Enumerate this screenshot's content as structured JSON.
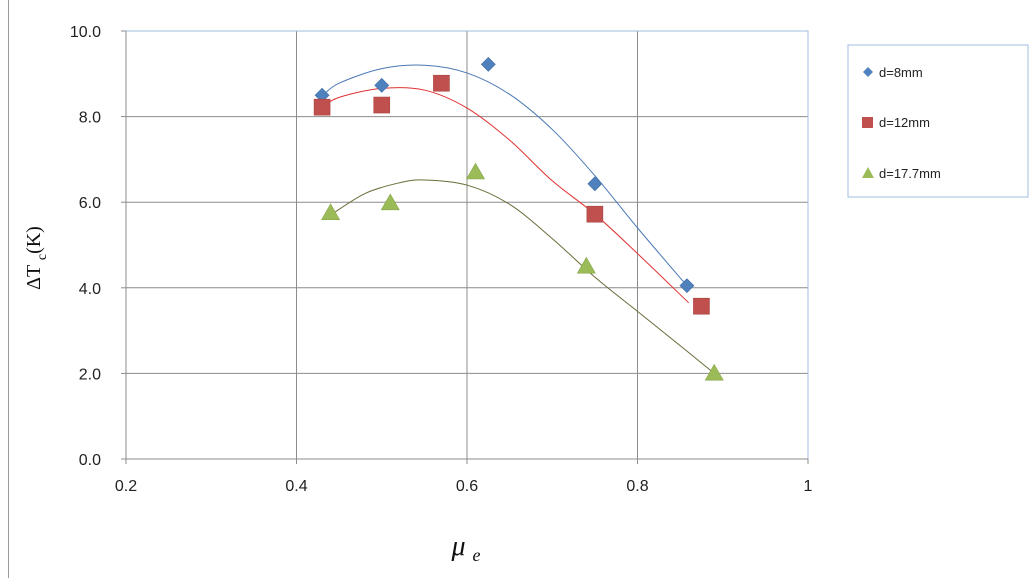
{
  "chart_data": {
    "type": "scatter",
    "title": "",
    "xlabel": "μe",
    "ylabel": "ΔTc(K)",
    "xlim": [
      0.2,
      1.0
    ],
    "ylim": [
      0.0,
      10.0
    ],
    "x_ticks": [
      "0.2",
      "0.4",
      "0.6",
      "0.8",
      "1"
    ],
    "y_ticks": [
      "0.0",
      "2.0",
      "4.0",
      "6.0",
      "8.0",
      "10.0"
    ],
    "grid": true,
    "legend_position": "right",
    "series": [
      {
        "name": "d=8mm",
        "marker": "diamond",
        "color": "#4f81bd",
        "trend_color": "#4a78b5",
        "points": [
          [
            0.43,
            8.5
          ],
          [
            0.5,
            8.73
          ],
          [
            0.625,
            9.22
          ],
          [
            0.75,
            6.43
          ],
          [
            0.858,
            4.05
          ]
        ],
        "trend": [
          [
            0.43,
            8.48
          ],
          [
            0.45,
            8.78
          ],
          [
            0.5,
            9.12
          ],
          [
            0.55,
            9.2
          ],
          [
            0.6,
            9.02
          ],
          [
            0.65,
            8.52
          ],
          [
            0.7,
            7.7
          ],
          [
            0.75,
            6.62
          ],
          [
            0.8,
            5.4
          ],
          [
            0.86,
            4.0
          ]
        ]
      },
      {
        "name": "d=12mm",
        "marker": "square",
        "color": "#c0504d",
        "trend_color": "#e03030",
        "points": [
          [
            0.43,
            8.22
          ],
          [
            0.5,
            8.27
          ],
          [
            0.57,
            8.78
          ],
          [
            0.75,
            5.72
          ],
          [
            0.875,
            3.57
          ]
        ],
        "trend": [
          [
            0.43,
            8.22
          ],
          [
            0.45,
            8.45
          ],
          [
            0.5,
            8.66
          ],
          [
            0.55,
            8.62
          ],
          [
            0.6,
            8.2
          ],
          [
            0.65,
            7.45
          ],
          [
            0.7,
            6.5
          ],
          [
            0.75,
            5.72
          ],
          [
            0.8,
            4.8
          ],
          [
            0.86,
            3.65
          ]
        ]
      },
      {
        "name": "d=17.7mm",
        "marker": "triangle",
        "color": "#9bbb59",
        "trend_color": "#6b6b3a",
        "points": [
          [
            0.44,
            5.75
          ],
          [
            0.51,
            5.98
          ],
          [
            0.61,
            6.7
          ],
          [
            0.74,
            4.5
          ],
          [
            0.89,
            2.0
          ]
        ],
        "trend": [
          [
            0.44,
            5.7
          ],
          [
            0.48,
            6.2
          ],
          [
            0.52,
            6.45
          ],
          [
            0.55,
            6.52
          ],
          [
            0.6,
            6.4
          ],
          [
            0.65,
            5.95
          ],
          [
            0.7,
            5.15
          ],
          [
            0.75,
            4.25
          ],
          [
            0.8,
            3.45
          ],
          [
            0.85,
            2.65
          ],
          [
            0.89,
            2.0
          ]
        ]
      }
    ]
  }
}
